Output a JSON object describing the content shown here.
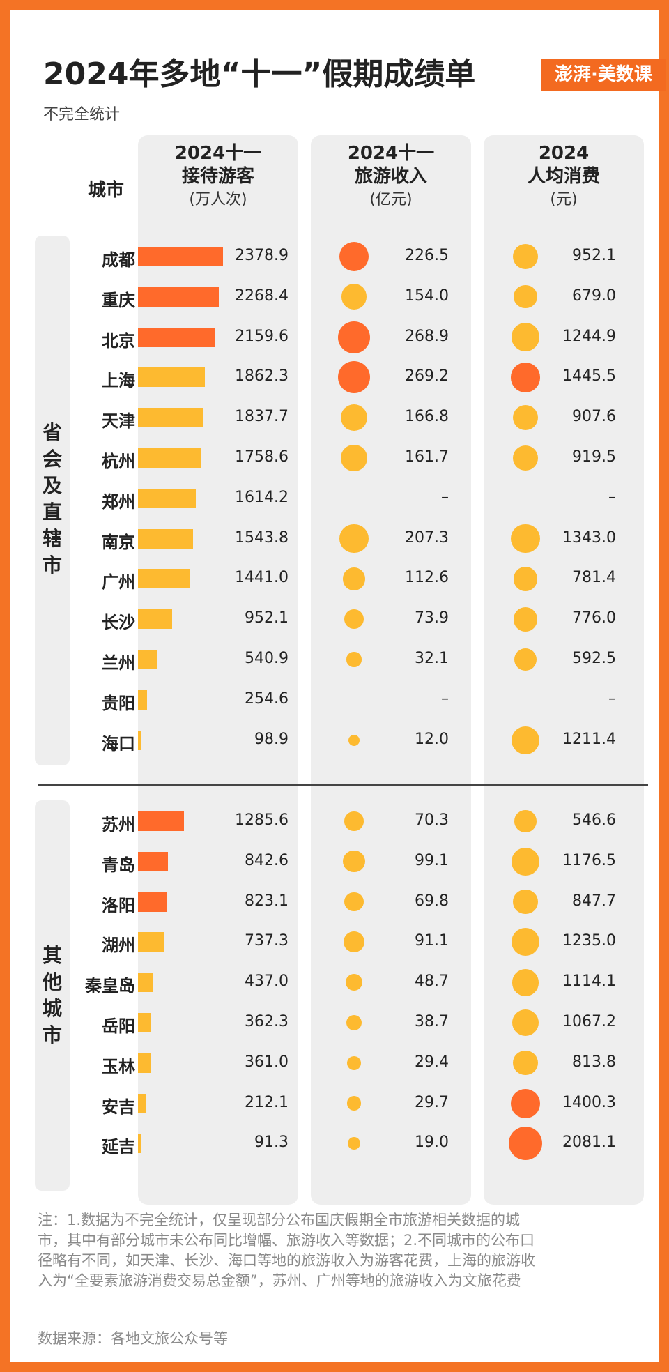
{
  "title": "2024年多地“十一”假期成绩单",
  "subtitle": "不完全统计",
  "logo_text": "澎湃·美数课",
  "colors": {
    "orange": "#FF6A2B",
    "yellow": "#FDBA30",
    "border": "#F47325",
    "panel": "#EEEEEE"
  },
  "headers": {
    "city": "城市",
    "visitors": {
      "line1": "2024十一",
      "line2": "接待游客",
      "unit": "(万人次)"
    },
    "revenue": {
      "line1": "2024十一",
      "line2": "旅游收入",
      "unit": "(亿元)"
    },
    "per_capita": {
      "line1": "2024",
      "line2": "人均消费",
      "unit": "(元)"
    }
  },
  "groups": [
    "省会及直辖市",
    "其他城市"
  ],
  "chart_data": {
    "type": "table",
    "title": "2024年多地“十一”假期成绩单",
    "columns": [
      "城市",
      "2024十一接待游客(万人次)",
      "2024十一旅游收入(亿元)",
      "2024人均消费(元)"
    ],
    "rows": [
      {
        "city": "成都",
        "group": 0,
        "visitors": 2378.9,
        "revenue": 226.5,
        "per_capita": 952.1,
        "bar_color": "orange",
        "rev_color": "orange",
        "pc_color": "yellow"
      },
      {
        "city": "重庆",
        "group": 0,
        "visitors": 2268.4,
        "revenue": 154.0,
        "per_capita": 679.0,
        "bar_color": "orange",
        "rev_color": "yellow",
        "pc_color": "yellow"
      },
      {
        "city": "北京",
        "group": 0,
        "visitors": 2159.6,
        "revenue": 268.9,
        "per_capita": 1244.9,
        "bar_color": "orange",
        "rev_color": "orange",
        "pc_color": "yellow"
      },
      {
        "city": "上海",
        "group": 0,
        "visitors": 1862.3,
        "revenue": 269.2,
        "per_capita": 1445.5,
        "bar_color": "yellow",
        "rev_color": "orange",
        "pc_color": "orange"
      },
      {
        "city": "天津",
        "group": 0,
        "visitors": 1837.7,
        "revenue": 166.8,
        "per_capita": 907.6,
        "bar_color": "yellow",
        "rev_color": "yellow",
        "pc_color": "yellow"
      },
      {
        "city": "杭州",
        "group": 0,
        "visitors": 1758.6,
        "revenue": 161.7,
        "per_capita": 919.5,
        "bar_color": "yellow",
        "rev_color": "yellow",
        "pc_color": "yellow"
      },
      {
        "city": "郑州",
        "group": 0,
        "visitors": 1614.2,
        "revenue": null,
        "per_capita": null,
        "bar_color": "yellow",
        "rev_color": "yellow",
        "pc_color": "yellow"
      },
      {
        "city": "南京",
        "group": 0,
        "visitors": 1543.8,
        "revenue": 207.3,
        "per_capita": 1343.0,
        "bar_color": "yellow",
        "rev_color": "yellow",
        "pc_color": "yellow"
      },
      {
        "city": "广州",
        "group": 0,
        "visitors": 1441.0,
        "revenue": 112.6,
        "per_capita": 781.4,
        "bar_color": "yellow",
        "rev_color": "yellow",
        "pc_color": "yellow"
      },
      {
        "city": "长沙",
        "group": 0,
        "visitors": 952.1,
        "revenue": 73.9,
        "per_capita": 776.0,
        "bar_color": "yellow",
        "rev_color": "yellow",
        "pc_color": "yellow"
      },
      {
        "city": "兰州",
        "group": 0,
        "visitors": 540.9,
        "revenue": 32.1,
        "per_capita": 592.5,
        "bar_color": "yellow",
        "rev_color": "yellow",
        "pc_color": "yellow"
      },
      {
        "city": "贵阳",
        "group": 0,
        "visitors": 254.6,
        "revenue": null,
        "per_capita": null,
        "bar_color": "yellow",
        "rev_color": "yellow",
        "pc_color": "yellow"
      },
      {
        "city": "海口",
        "group": 0,
        "visitors": 98.9,
        "revenue": 12.0,
        "per_capita": 1211.4,
        "bar_color": "yellow",
        "rev_color": "yellow",
        "pc_color": "yellow"
      },
      {
        "city": "苏州",
        "group": 1,
        "visitors": 1285.6,
        "revenue": 70.3,
        "per_capita": 546.6,
        "bar_color": "orange",
        "rev_color": "yellow",
        "pc_color": "yellow"
      },
      {
        "city": "青岛",
        "group": 1,
        "visitors": 842.6,
        "revenue": 99.1,
        "per_capita": 1176.5,
        "bar_color": "orange",
        "rev_color": "yellow",
        "pc_color": "yellow"
      },
      {
        "city": "洛阳",
        "group": 1,
        "visitors": 823.1,
        "revenue": 69.8,
        "per_capita": 847.7,
        "bar_color": "orange",
        "rev_color": "yellow",
        "pc_color": "yellow"
      },
      {
        "city": "湖州",
        "group": 1,
        "visitors": 737.3,
        "revenue": 91.1,
        "per_capita": 1235.0,
        "bar_color": "yellow",
        "rev_color": "yellow",
        "pc_color": "yellow"
      },
      {
        "city": "秦皇岛",
        "group": 1,
        "visitors": 437.0,
        "revenue": 48.7,
        "per_capita": 1114.1,
        "bar_color": "yellow",
        "rev_color": "yellow",
        "pc_color": "yellow"
      },
      {
        "city": "岳阳",
        "group": 1,
        "visitors": 362.3,
        "revenue": 38.7,
        "per_capita": 1067.2,
        "bar_color": "yellow",
        "rev_color": "yellow",
        "pc_color": "yellow"
      },
      {
        "city": "玉林",
        "group": 1,
        "visitors": 361.0,
        "revenue": 29.4,
        "per_capita": 813.8,
        "bar_color": "yellow",
        "rev_color": "yellow",
        "pc_color": "yellow"
      },
      {
        "city": "安吉",
        "group": 1,
        "visitors": 212.1,
        "revenue": 29.7,
        "per_capita": 1400.3,
        "bar_color": "yellow",
        "rev_color": "yellow",
        "pc_color": "orange"
      },
      {
        "city": "延吉",
        "group": 1,
        "visitors": 91.3,
        "revenue": 19.0,
        "per_capita": 2081.1,
        "bar_color": "yellow",
        "rev_color": "yellow",
        "pc_color": "orange"
      }
    ],
    "missing_label": "–"
  },
  "note": "注：1.数据为不完全统计，仅呈现部分公布国庆假期全市旅游相关数据的城市，其中有部分城市未公布同比增幅、旅游收入等数据；2.不同城市的公布口径略有不同，如天津、长沙、海口等地的旅游收入为游客花费，上海的旅游收入为“全要素旅游消费交易总金额”，苏州、广州等地的旅游收入为文旅花费",
  "source": "数据来源：各地文旅公众号等"
}
